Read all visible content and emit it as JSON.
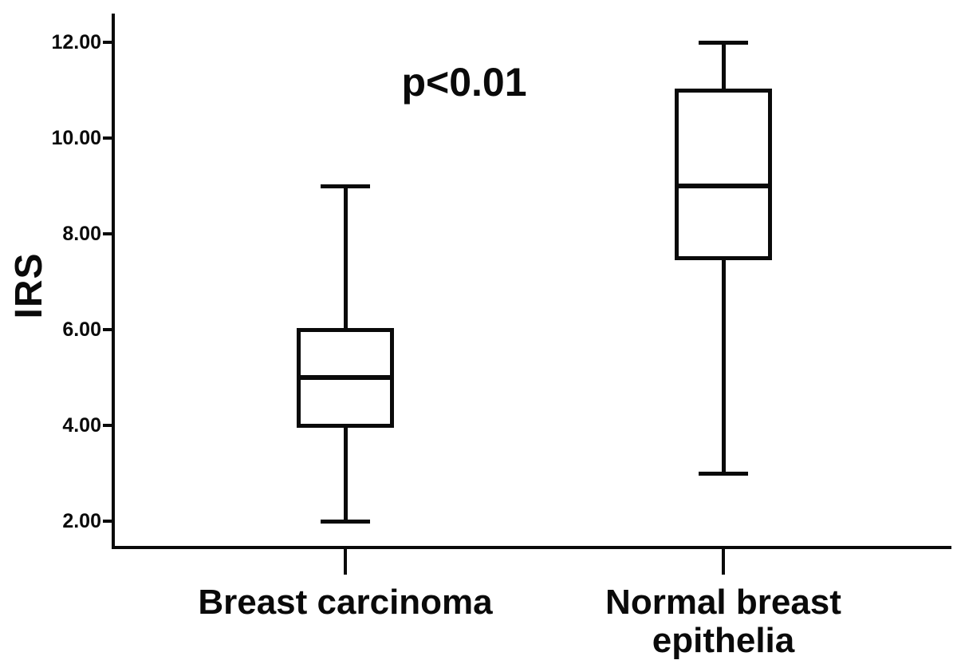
{
  "figure": {
    "background": "#ffffff",
    "ink_color": "#0a0a0a"
  },
  "chart_data": {
    "type": "boxplot",
    "title": "",
    "xlabel": "",
    "ylabel": "IRS",
    "annotation": "p<0.01",
    "grid": false,
    "legend": "none",
    "ylim": [
      1.4,
      12.6
    ],
    "yticks": [
      12,
      10,
      8,
      6,
      4,
      2
    ],
    "ytick_labels": [
      "12.00",
      "10.00",
      "8.00",
      "6.00",
      "4.00",
      "2.00"
    ],
    "categories": [
      "Breast carcinoma",
      "Normal breast epithelia"
    ],
    "series": [
      {
        "name": "Breast carcinoma",
        "whisker_min": 2.0,
        "q1": 4.0,
        "median": 5.0,
        "q3": 6.0,
        "whisker_max": 9.0
      },
      {
        "name": "Normal breast epithelia",
        "whisker_min": 3.0,
        "q1": 7.5,
        "median": 9.0,
        "q3": 11.0,
        "whisker_max": 12.0
      }
    ]
  }
}
